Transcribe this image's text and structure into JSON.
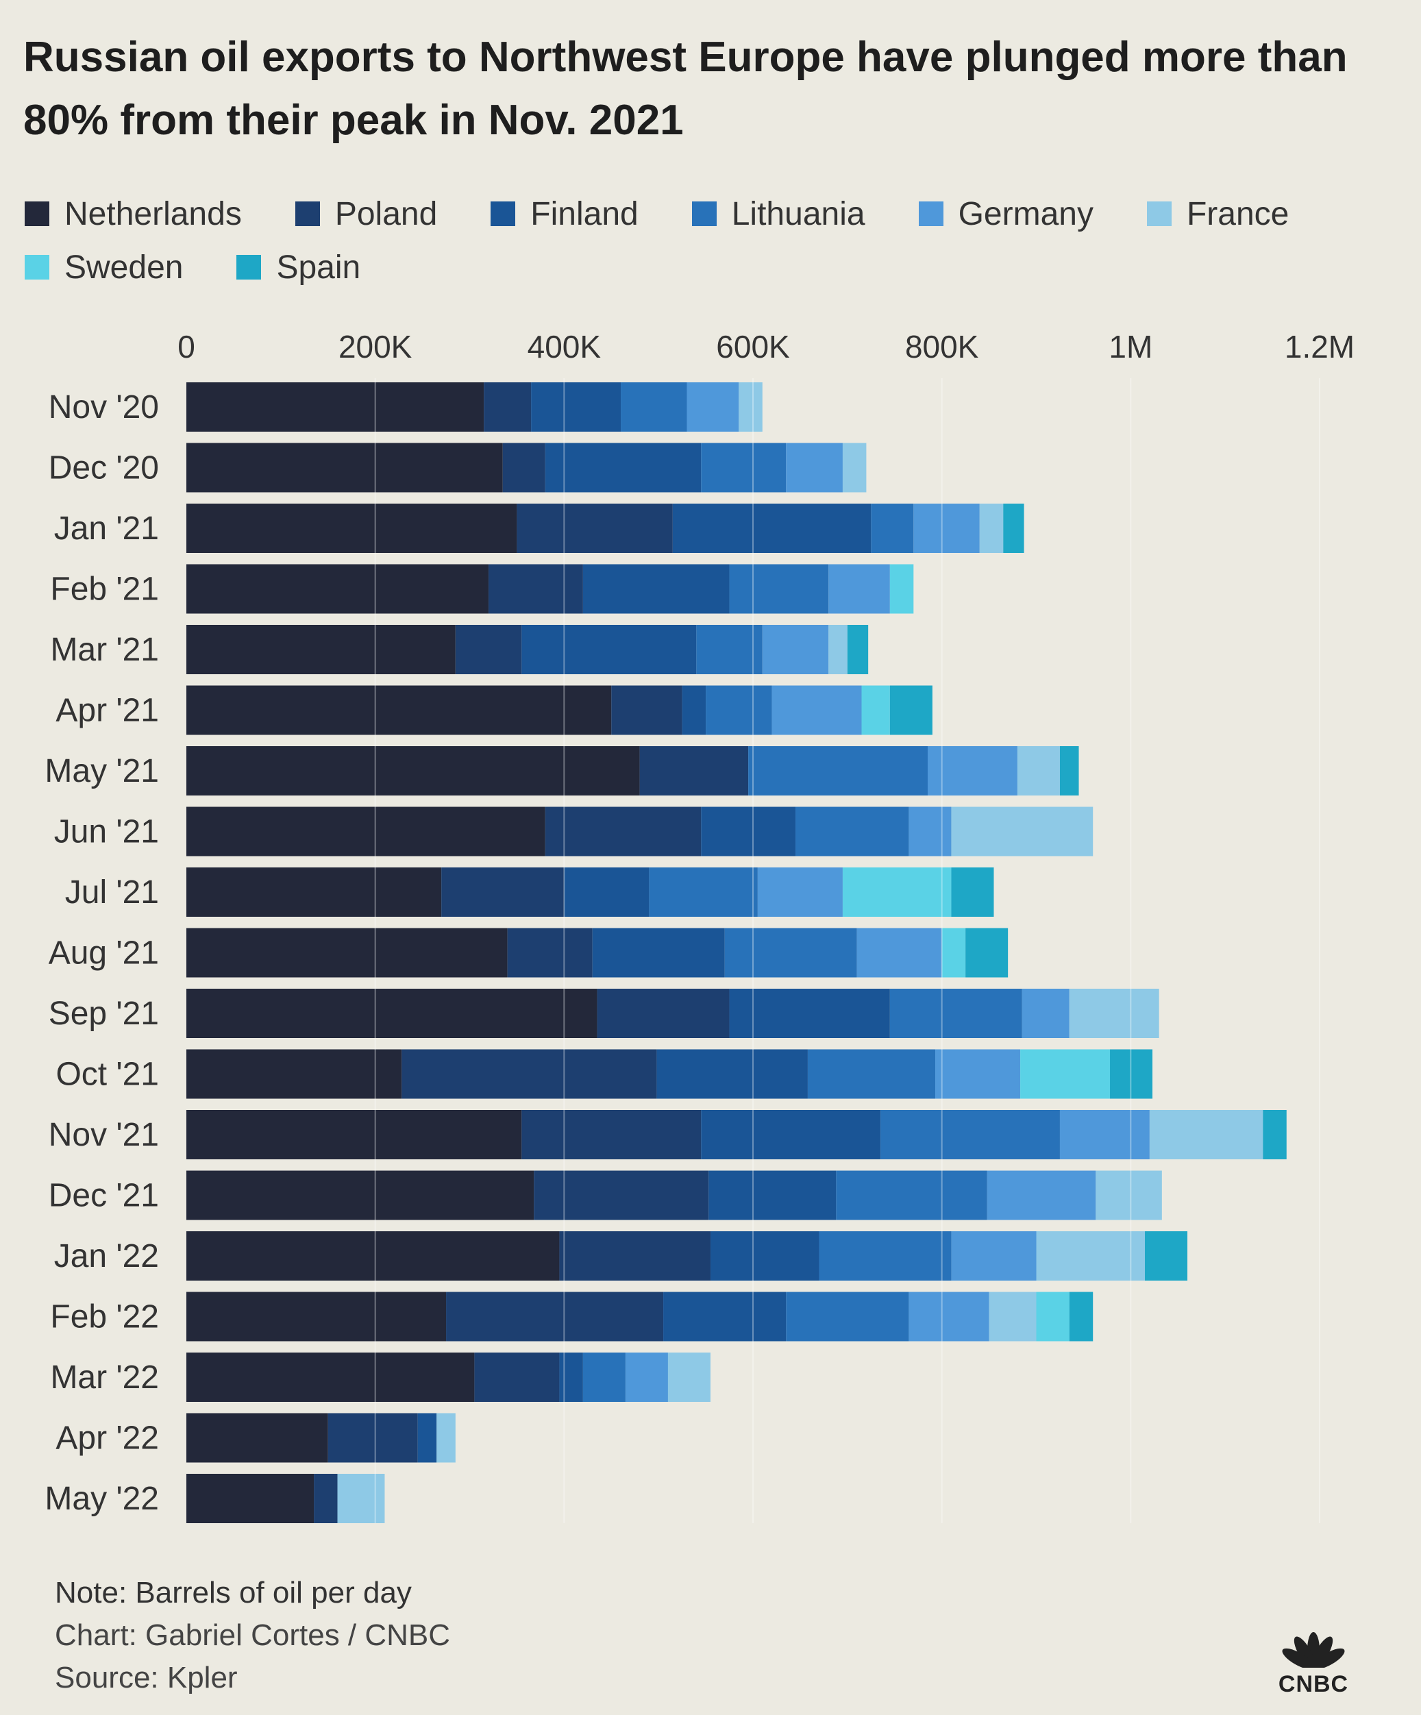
{
  "chart_data": {
    "type": "bar",
    "orientation": "horizontal",
    "stacked": true,
    "title": "Russian oil exports to Northwest Europe have plunged more than 80% from their peak in Nov. 2021",
    "xlabel": "",
    "ylabel": "",
    "xlim": [
      0,
      1200000
    ],
    "x_ticks": [
      0,
      200000,
      400000,
      600000,
      800000,
      1000000,
      1200000
    ],
    "x_tick_labels": [
      "0",
      "200K",
      "400K",
      "600K",
      "800K",
      "1M",
      "1.2M"
    ],
    "grid": true,
    "legend_position": "top",
    "categories": [
      "Nov '20",
      "Dec '20",
      "Jan '21",
      "Feb '21",
      "Mar '21",
      "Apr '21",
      "May '21",
      "Jun '21",
      "Jul '21",
      "Aug '21",
      "Sep '21",
      "Oct '21",
      "Nov '21",
      "Dec '21",
      "Jan '22",
      "Feb '22",
      "Mar '22",
      "Apr '22",
      "May '22"
    ],
    "series": [
      {
        "name": "Netherlands",
        "color": "#23283a",
        "values": [
          315000,
          335000,
          350000,
          320000,
          285000,
          450000,
          480000,
          380000,
          270000,
          340000,
          435000,
          228000,
          355000,
          368000,
          395000,
          275000,
          305000,
          150000,
          135000
        ]
      },
      {
        "name": "Poland",
        "color": "#1d3f70",
        "values": [
          50000,
          45000,
          165000,
          100000,
          70000,
          75000,
          115000,
          165000,
          130000,
          90000,
          140000,
          270000,
          190000,
          185000,
          160000,
          230000,
          90000,
          95000,
          25000
        ]
      },
      {
        "name": "Finland",
        "color": "#1a5596",
        "values": [
          95000,
          165000,
          210000,
          155000,
          185000,
          25000,
          0,
          100000,
          90000,
          140000,
          170000,
          160000,
          190000,
          135000,
          115000,
          130000,
          25000,
          20000,
          0
        ]
      },
      {
        "name": "Lithuania",
        "color": "#2872b9",
        "values": [
          70000,
          90000,
          45000,
          105000,
          70000,
          70000,
          190000,
          120000,
          115000,
          140000,
          140000,
          135000,
          190000,
          160000,
          140000,
          130000,
          45000,
          0,
          0
        ]
      },
      {
        "name": "Germany",
        "color": "#4f98da",
        "values": [
          55000,
          60000,
          70000,
          65000,
          70000,
          95000,
          95000,
          45000,
          90000,
          90000,
          50000,
          90000,
          95000,
          115000,
          90000,
          85000,
          45000,
          0,
          0
        ]
      },
      {
        "name": "France",
        "color": "#8ec9e6",
        "values": [
          25000,
          25000,
          25000,
          0,
          20000,
          0,
          45000,
          150000,
          0,
          0,
          95000,
          0,
          120000,
          70000,
          115000,
          50000,
          45000,
          20000,
          50000
        ]
      },
      {
        "name": "Sweden",
        "color": "#5ad2e6",
        "values": [
          0,
          0,
          0,
          25000,
          0,
          30000,
          0,
          0,
          115000,
          25000,
          0,
          95000,
          0,
          0,
          0,
          35000,
          0,
          0,
          0
        ]
      },
      {
        "name": "Spain",
        "color": "#1ea7c6",
        "values": [
          0,
          0,
          22000,
          0,
          22000,
          45000,
          20000,
          0,
          45000,
          45000,
          0,
          45000,
          25000,
          0,
          45000,
          25000,
          0,
          0,
          0
        ]
      }
    ],
    "notes": [
      "Note: Barrels of oil per day",
      "Chart: Gabriel Cortes / CNBC",
      "Source: Kpler"
    ]
  },
  "brand": {
    "logo_icon": "peacock-icon",
    "text": "CNBC"
  }
}
